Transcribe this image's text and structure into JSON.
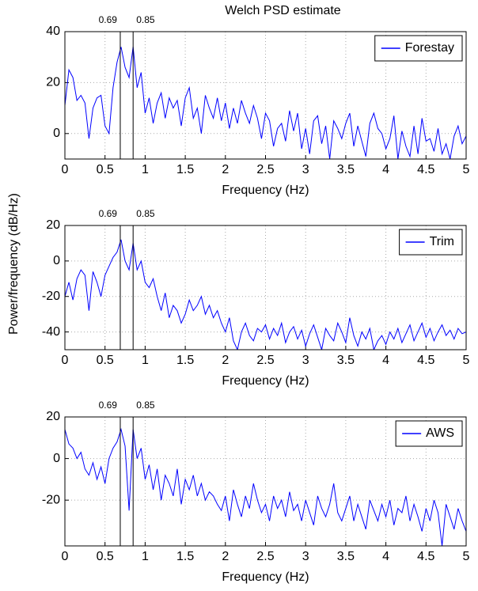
{
  "chart_data": [
    {
      "type": "line",
      "title": "Welch PSD estimate",
      "xlabel": "Frequency (Hz)",
      "x": [
        0,
        0.05,
        0.1,
        0.15,
        0.2,
        0.25,
        0.3,
        0.35,
        0.4,
        0.45,
        0.5,
        0.55,
        0.6,
        0.65,
        0.7,
        0.75,
        0.8,
        0.85,
        0.9,
        0.95,
        1,
        1.05,
        1.1,
        1.15,
        1.2,
        1.25,
        1.3,
        1.35,
        1.4,
        1.45,
        1.5,
        1.55,
        1.6,
        1.65,
        1.7,
        1.75,
        1.8,
        1.85,
        1.9,
        1.95,
        2,
        2.05,
        2.1,
        2.15,
        2.2,
        2.25,
        2.3,
        2.35,
        2.4,
        2.45,
        2.5,
        2.55,
        2.6,
        2.65,
        2.7,
        2.75,
        2.8,
        2.85,
        2.9,
        2.95,
        3,
        3.05,
        3.1,
        3.15,
        3.2,
        3.25,
        3.3,
        3.35,
        3.4,
        3.45,
        3.5,
        3.55,
        3.6,
        3.65,
        3.7,
        3.75,
        3.8,
        3.85,
        3.9,
        3.95,
        4,
        4.05,
        4.1,
        4.15,
        4.2,
        4.25,
        4.3,
        4.35,
        4.4,
        4.45,
        4.5,
        4.55,
        4.6,
        4.65,
        4.7,
        4.75,
        4.8,
        4.85,
        4.9,
        4.95,
        5
      ],
      "series": [
        {
          "name": "Forestay",
          "color": "#0000ff",
          "values": [
            11,
            25,
            22,
            13,
            15,
            12,
            -2,
            10,
            14,
            15,
            3,
            0,
            18,
            28,
            34,
            26,
            22,
            34,
            18,
            24,
            8,
            14,
            4,
            12,
            16,
            6,
            14,
            10,
            13,
            3,
            14,
            18,
            6,
            10,
            0,
            15,
            10,
            6,
            14,
            5,
            12,
            2,
            10,
            4,
            13,
            8,
            4,
            11,
            6,
            -2,
            8,
            5,
            -5,
            2,
            4,
            -3,
            9,
            1,
            8,
            -6,
            2,
            -8,
            5,
            7,
            -4,
            3,
            -10,
            5,
            2,
            -2,
            4,
            8,
            -5,
            3,
            -3,
            -9,
            4,
            8,
            2,
            0,
            -6,
            -2,
            7,
            -10,
            1,
            -5,
            -9,
            3,
            -8,
            6,
            -3,
            -2,
            -7,
            2,
            -8,
            -4,
            -10,
            -1,
            3,
            -4,
            -1
          ]
        }
      ],
      "vlines": [
        0.69,
        0.85
      ],
      "xlim": [
        0,
        5
      ],
      "xticks": [
        0,
        0.5,
        1,
        1.5,
        2,
        2.5,
        3,
        3.5,
        4,
        4.5,
        5
      ],
      "ylim": [
        -10,
        40
      ],
      "yticks": [
        0,
        20,
        40
      ],
      "grid": true,
      "legend": "upper right"
    },
    {
      "type": "line",
      "xlabel": "Frequency (Hz)",
      "ylabel": "Power/frequency (dB/Hz)",
      "x": [
        0,
        0.05,
        0.1,
        0.15,
        0.2,
        0.25,
        0.3,
        0.35,
        0.4,
        0.45,
        0.5,
        0.55,
        0.6,
        0.65,
        0.7,
        0.75,
        0.8,
        0.85,
        0.9,
        0.95,
        1,
        1.05,
        1.1,
        1.15,
        1.2,
        1.25,
        1.3,
        1.35,
        1.4,
        1.45,
        1.5,
        1.55,
        1.6,
        1.65,
        1.7,
        1.75,
        1.8,
        1.85,
        1.9,
        1.95,
        2,
        2.05,
        2.1,
        2.15,
        2.2,
        2.25,
        2.3,
        2.35,
        2.4,
        2.45,
        2.5,
        2.55,
        2.6,
        2.65,
        2.7,
        2.75,
        2.8,
        2.85,
        2.9,
        2.95,
        3,
        3.05,
        3.1,
        3.15,
        3.2,
        3.25,
        3.3,
        3.35,
        3.4,
        3.45,
        3.5,
        3.55,
        3.6,
        3.65,
        3.7,
        3.75,
        3.8,
        3.85,
        3.9,
        3.95,
        4,
        4.05,
        4.1,
        4.15,
        4.2,
        4.25,
        4.3,
        4.35,
        4.4,
        4.45,
        4.5,
        4.55,
        4.6,
        4.65,
        4.7,
        4.75,
        4.8,
        4.85,
        4.9,
        4.95,
        5
      ],
      "series": [
        {
          "name": "Trim",
          "color": "#0000ff",
          "values": [
            -20,
            -12,
            -22,
            -10,
            -5,
            -8,
            -28,
            -6,
            -12,
            -20,
            -8,
            -3,
            2,
            5,
            12,
            0,
            -5,
            10,
            -5,
            0,
            -12,
            -15,
            -10,
            -20,
            -28,
            -18,
            -32,
            -25,
            -28,
            -35,
            -30,
            -22,
            -28,
            -25,
            -20,
            -30,
            -25,
            -32,
            -28,
            -35,
            -40,
            -32,
            -45,
            -50,
            -40,
            -35,
            -42,
            -45,
            -38,
            -40,
            -36,
            -44,
            -38,
            -42,
            -35,
            -46,
            -40,
            -37,
            -44,
            -39,
            -48,
            -41,
            -36,
            -43,
            -50,
            -38,
            -42,
            -45,
            -35,
            -40,
            -46,
            -32,
            -42,
            -48,
            -40,
            -44,
            -38,
            -50,
            -45,
            -42,
            -47,
            -40,
            -44,
            -38,
            -46,
            -41,
            -36,
            -45,
            -40,
            -35,
            -43,
            -38,
            -45,
            -40,
            -36,
            -42,
            -39,
            -44,
            -38,
            -41,
            -40
          ]
        }
      ],
      "vlines": [
        0.69,
        0.85
      ],
      "xlim": [
        0,
        5
      ],
      "xticks": [
        0,
        0.5,
        1,
        1.5,
        2,
        2.5,
        3,
        3.5,
        4,
        4.5,
        5
      ],
      "ylim": [
        -50,
        20
      ],
      "yticks": [
        -40,
        -20,
        0,
        20
      ],
      "grid": true,
      "legend": "upper right"
    },
    {
      "type": "line",
      "xlabel": "Frequency (Hz)",
      "x": [
        0,
        0.05,
        0.1,
        0.15,
        0.2,
        0.25,
        0.3,
        0.35,
        0.4,
        0.45,
        0.5,
        0.55,
        0.6,
        0.65,
        0.7,
        0.75,
        0.8,
        0.85,
        0.9,
        0.95,
        1,
        1.05,
        1.1,
        1.15,
        1.2,
        1.25,
        1.3,
        1.35,
        1.4,
        1.45,
        1.5,
        1.55,
        1.6,
        1.65,
        1.7,
        1.75,
        1.8,
        1.85,
        1.9,
        1.95,
        2,
        2.05,
        2.1,
        2.15,
        2.2,
        2.25,
        2.3,
        2.35,
        2.4,
        2.45,
        2.5,
        2.55,
        2.6,
        2.65,
        2.7,
        2.75,
        2.8,
        2.85,
        2.9,
        2.95,
        3,
        3.05,
        3.1,
        3.15,
        3.2,
        3.25,
        3.3,
        3.35,
        3.4,
        3.45,
        3.5,
        3.55,
        3.6,
        3.65,
        3.7,
        3.75,
        3.8,
        3.85,
        3.9,
        3.95,
        4,
        4.05,
        4.1,
        4.15,
        4.2,
        4.25,
        4.3,
        4.35,
        4.4,
        4.45,
        4.5,
        4.55,
        4.6,
        4.65,
        4.7,
        4.75,
        4.8,
        4.85,
        4.9,
        4.95,
        5
      ],
      "series": [
        {
          "name": "AWS",
          "color": "#0000ff",
          "values": [
            14,
            7,
            5,
            0,
            3,
            -5,
            -8,
            -2,
            -10,
            -4,
            -12,
            0,
            5,
            8,
            14,
            6,
            -25,
            14,
            0,
            5,
            -10,
            -3,
            -15,
            -5,
            -20,
            -8,
            -12,
            -18,
            -5,
            -22,
            -10,
            -15,
            -8,
            -18,
            -12,
            -20,
            -16,
            -18,
            -22,
            -25,
            -18,
            -30,
            -15,
            -22,
            -28,
            -18,
            -24,
            -12,
            -20,
            -26,
            -22,
            -30,
            -18,
            -24,
            -20,
            -28,
            -16,
            -25,
            -22,
            -30,
            -20,
            -26,
            -32,
            -18,
            -24,
            -28,
            -22,
            -12,
            -26,
            -30,
            -24,
            -18,
            -30,
            -22,
            -28,
            -34,
            -20,
            -25,
            -30,
            -22,
            -28,
            -20,
            -32,
            -24,
            -26,
            -18,
            -30,
            -22,
            -28,
            -35,
            -24,
            -30,
            -20,
            -26,
            -42,
            -22,
            -28,
            -34,
            -24,
            -30,
            -35
          ]
        }
      ],
      "vlines": [
        0.69,
        0.85
      ],
      "xlim": [
        0,
        5
      ],
      "xticks": [
        0,
        0.5,
        1,
        1.5,
        2,
        2.5,
        3,
        3.5,
        4,
        4.5,
        5
      ],
      "ylim": [
        -42,
        20
      ],
      "yticks": [
        -20,
        0,
        20
      ],
      "grid": true,
      "legend": "upper right"
    }
  ]
}
